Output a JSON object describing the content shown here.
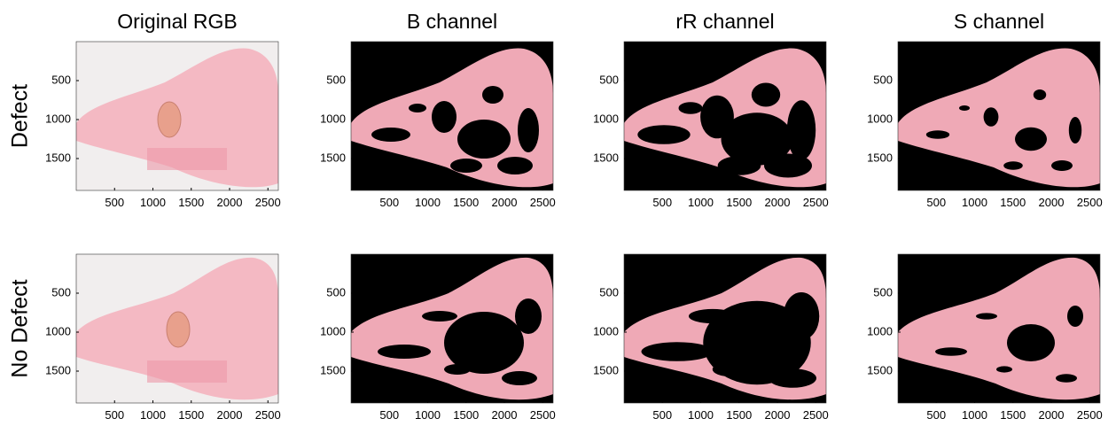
{
  "columns": [
    "Original RGB",
    "B channel",
    "rR channel",
    "S channel"
  ],
  "rows": [
    "Defect",
    "No Defect"
  ],
  "x_ticks": [
    500,
    1000,
    1500,
    2000,
    2500
  ],
  "y_ticks": [
    500,
    1000,
    1500
  ]
}
